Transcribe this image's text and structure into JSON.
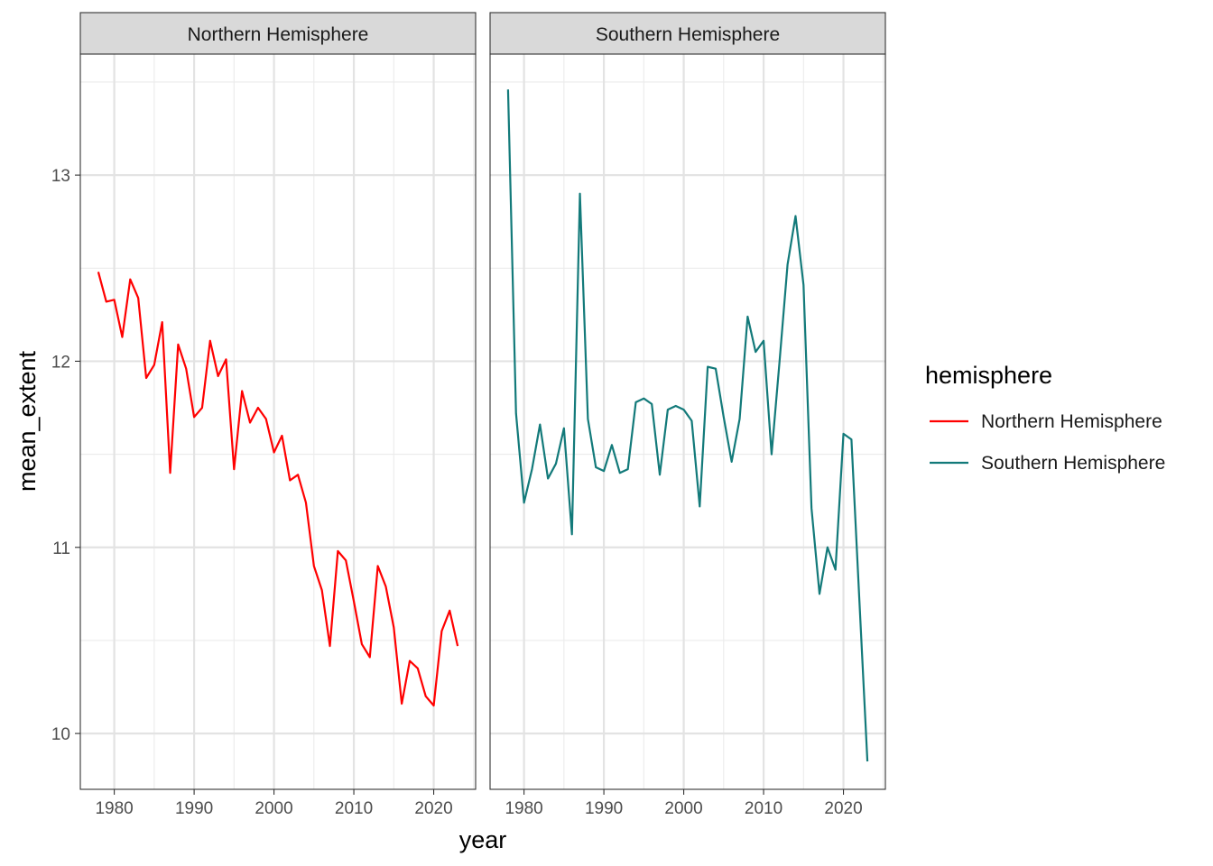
{
  "chart_data": {
    "type": "line",
    "xlabel": "year",
    "ylabel": "mean_extent",
    "xlim": [
      1975.75,
      2025.25
    ],
    "ylim": [
      9.7,
      13.65
    ],
    "x_ticks": [
      1980,
      1990,
      2000,
      2010,
      2020
    ],
    "y_ticks": [
      10,
      11,
      12,
      13
    ],
    "grid": true,
    "legend": {
      "title": "hemisphere",
      "position": "right",
      "entries": [
        "Northern Hemisphere",
        "Southern Hemisphere"
      ]
    },
    "facets": [
      {
        "label": "Northern Hemisphere",
        "color": "#ff0000",
        "x": [
          1978,
          1979,
          1980,
          1981,
          1982,
          1983,
          1984,
          1985,
          1986,
          1987,
          1988,
          1989,
          1990,
          1991,
          1992,
          1993,
          1994,
          1995,
          1996,
          1997,
          1998,
          1999,
          2000,
          2001,
          2002,
          2003,
          2004,
          2005,
          2006,
          2007,
          2008,
          2009,
          2010,
          2011,
          2012,
          2013,
          2014,
          2015,
          2016,
          2017,
          2018,
          2019,
          2020,
          2021,
          2022,
          2023
        ],
        "values": [
          12.48,
          12.32,
          12.33,
          12.13,
          12.44,
          12.34,
          11.91,
          11.98,
          12.21,
          11.4,
          12.09,
          11.96,
          11.7,
          11.75,
          12.11,
          11.92,
          12.01,
          11.42,
          11.84,
          11.67,
          11.75,
          11.69,
          11.51,
          11.6,
          11.36,
          11.39,
          11.24,
          10.9,
          10.77,
          10.47,
          10.98,
          10.93,
          10.71,
          10.48,
          10.41,
          10.9,
          10.79,
          10.57,
          10.16,
          10.39,
          10.35,
          10.2,
          10.15,
          10.55,
          10.66,
          10.47
        ]
      },
      {
        "label": "Southern Hemisphere",
        "color": "#137a7a",
        "x": [
          1978,
          1979,
          1980,
          1981,
          1982,
          1983,
          1984,
          1985,
          1986,
          1987,
          1988,
          1989,
          1990,
          1991,
          1992,
          1993,
          1994,
          1995,
          1996,
          1997,
          1998,
          1999,
          2000,
          2001,
          2002,
          2003,
          2004,
          2005,
          2006,
          2007,
          2008,
          2009,
          2010,
          2011,
          2012,
          2013,
          2014,
          2015,
          2016,
          2017,
          2018,
          2019,
          2020,
          2021,
          2022,
          2023
        ],
        "values": [
          13.46,
          11.72,
          11.24,
          11.42,
          11.66,
          11.37,
          11.45,
          11.64,
          11.07,
          12.9,
          11.69,
          11.43,
          11.41,
          11.55,
          11.4,
          11.42,
          11.78,
          11.8,
          11.77,
          11.39,
          11.74,
          11.76,
          11.74,
          11.68,
          11.22,
          11.97,
          11.96,
          11.7,
          11.46,
          11.69,
          12.24,
          12.05,
          12.11,
          11.5,
          12.0,
          12.52,
          12.78,
          12.41,
          11.21,
          10.75,
          11.0,
          10.88,
          11.61,
          11.58,
          10.71,
          9.85
        ]
      }
    ]
  }
}
